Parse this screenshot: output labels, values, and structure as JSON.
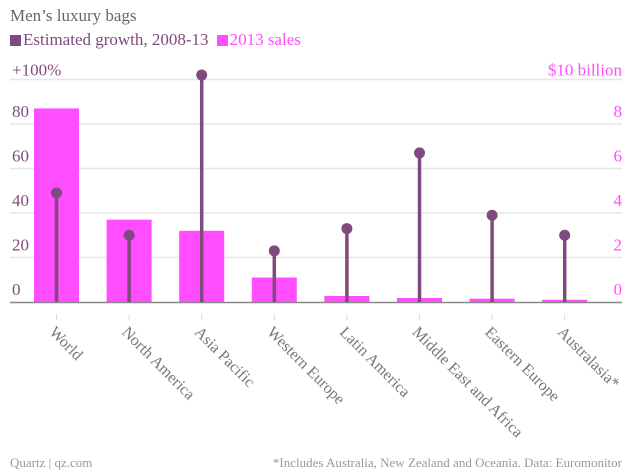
{
  "chart_data": {
    "type": "bar",
    "title": "Men’s luxury bags",
    "categories": [
      "World",
      "North America",
      "Asia Pacific",
      "Western Europe",
      "Latin America",
      "Middle East and Africa",
      "Eastern Europe",
      "Australasia*"
    ],
    "series": [
      {
        "name": "Estimated growth, 2008-13",
        "mark": "lollipop",
        "axis": "left",
        "color": "#7f4a7e",
        "values": [
          49,
          30,
          102,
          23,
          33,
          67,
          39,
          30
        ]
      },
      {
        "name": "2013 sales",
        "mark": "bar",
        "axis": "right",
        "color": "#ff4dff",
        "values": [
          8.7,
          3.7,
          3.2,
          1.1,
          0.27,
          0.18,
          0.15,
          0.1
        ]
      }
    ],
    "left_axis": {
      "ylim": [
        0,
        100
      ],
      "ticks": [
        0,
        20,
        40,
        60,
        80,
        100
      ],
      "tick_labels": [
        "0",
        "20",
        "40",
        "60",
        "80",
        "+100%"
      ],
      "color": "#7f4a7e"
    },
    "right_axis": {
      "ylim": [
        0,
        10
      ],
      "ticks": [
        0,
        2,
        4,
        6,
        8,
        10
      ],
      "tick_labels": [
        "0",
        "2",
        "4",
        "6",
        "8",
        "$10 billion"
      ],
      "color": "#ff4dff"
    },
    "grid": true,
    "legend_placement": "top-left"
  },
  "footer": {
    "source": "Quartz | qz.com",
    "note": "*Includes Australia, New Zealand and Oceania. Data: Euromonitor"
  }
}
